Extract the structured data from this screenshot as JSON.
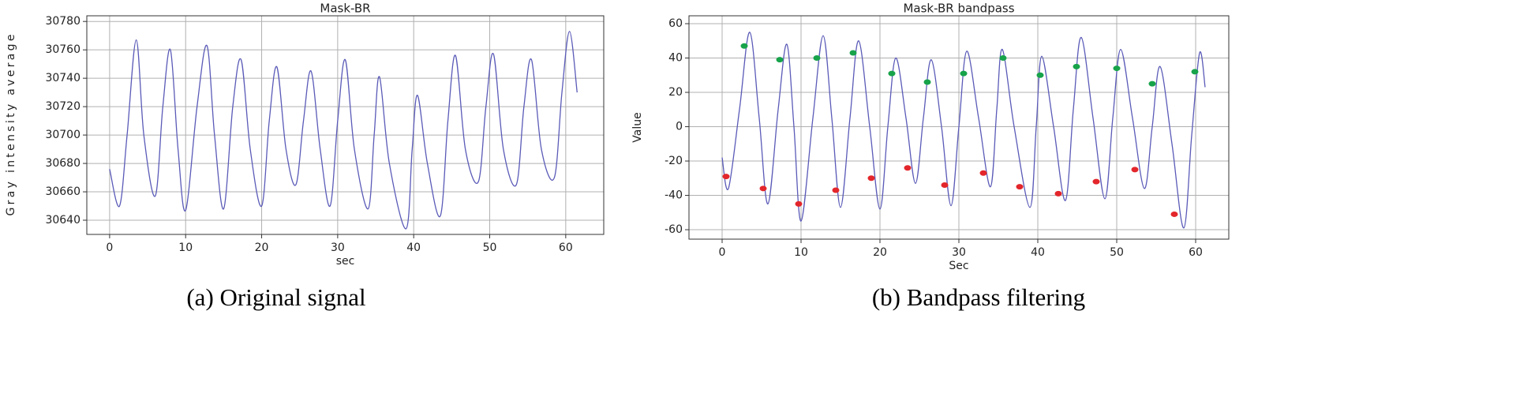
{
  "chart_data": [
    {
      "type": "line",
      "title": "Mask-BR",
      "xlabel": "sec",
      "ylabel": "Gray intensity average",
      "caption": "(a) Original signal",
      "xlim": [
        -3,
        65
      ],
      "ylim": [
        30630,
        30784
      ],
      "xticks": [
        0,
        10,
        20,
        30,
        40,
        50,
        60
      ],
      "yticks": [
        30640,
        30660,
        30680,
        30700,
        30720,
        30740,
        30760,
        30780
      ],
      "grid": true,
      "series": [
        {
          "type": "line",
          "color": "#5a5ab8",
          "x": [
            0,
            1.3,
            2.3,
            3.5,
            4.5,
            6,
            7,
            8,
            9,
            10,
            11.5,
            12.8,
            13.8,
            15,
            16.2,
            17.3,
            18.5,
            20,
            21,
            22,
            23.2,
            24.5,
            25.5,
            26.5,
            27.7,
            29,
            30,
            31,
            32.2,
            34,
            34.8,
            35.5,
            36.8,
            39,
            39.8,
            40.5,
            41.8,
            43.5,
            44.5,
            45.5,
            46.8,
            48.5,
            49.5,
            50.5,
            51.8,
            53.5,
            54.5,
            55.5,
            56.8,
            58.5,
            59.5,
            60.5,
            61.5
          ],
          "values": [
            30676,
            30650,
            30700,
            30767,
            30700,
            30657,
            30720,
            30760,
            30690,
            30647,
            30720,
            30763,
            30700,
            30648,
            30720,
            30753,
            30690,
            30650,
            30710,
            30748,
            30690,
            30665,
            30710,
            30745,
            30690,
            30650,
            30710,
            30753,
            30690,
            30648,
            30700,
            30741,
            30680,
            30634,
            30690,
            30728,
            30680,
            30643,
            30710,
            30756,
            30690,
            30667,
            30720,
            30757,
            30690,
            30665,
            30720,
            30753,
            30690,
            30670,
            30730,
            30773,
            30730
          ]
        }
      ]
    },
    {
      "type": "line",
      "title": "Mask-BR bandpass",
      "xlabel": "Sec",
      "ylabel": "Value",
      "caption": "(b) Bandpass filtering",
      "xlim": [
        -4.2,
        64.2
      ],
      "ylim": [
        -65.5,
        64.6
      ],
      "xticks": [
        0,
        10,
        20,
        30,
        40,
        50,
        60
      ],
      "yticks": [
        -60,
        -40,
        -20,
        0,
        20,
        40,
        60
      ],
      "grid": true,
      "series": [
        {
          "type": "line",
          "color": "#5a5ab8",
          "x": [
            0,
            0.8,
            2.2,
            3.5,
            4.7,
            5.8,
            7.1,
            8.2,
            9.1,
            10,
            11.5,
            12.8,
            13.9,
            15,
            16.2,
            17.3,
            18.7,
            20,
            21,
            22,
            23.3,
            24.5,
            25.5,
            26.5,
            27.8,
            29,
            30,
            31,
            32.5,
            34,
            34.8,
            35.5,
            37,
            39,
            39.8,
            40.5,
            42,
            43.5,
            44.5,
            45.5,
            47,
            48.5,
            49.5,
            50.5,
            52,
            53.5,
            54.5,
            55.5,
            57,
            58.5,
            59.5,
            60.5,
            61.2
          ],
          "values": [
            -18,
            -36,
            10,
            55,
            5,
            -45,
            10,
            48,
            0,
            -55,
            5,
            53,
            5,
            -47,
            5,
            50,
            0,
            -48,
            0,
            40,
            5,
            -33,
            5,
            39,
            0,
            -46,
            0,
            44,
            5,
            -35,
            10,
            45,
            0,
            -47,
            0,
            41,
            0,
            -43,
            10,
            52,
            5,
            -42,
            5,
            45,
            5,
            -36,
            0,
            35,
            -10,
            -59,
            -5,
            43,
            23
          ]
        },
        {
          "type": "scatter",
          "color": "#17a34a",
          "x": [
            2.8,
            7.3,
            12,
            16.6,
            21.5,
            26,
            30.6,
            35.6,
            40.3,
            44.9,
            50,
            54.5,
            59.9
          ],
          "values": [
            47,
            39,
            40,
            43,
            31,
            26,
            31,
            40,
            30,
            35,
            34,
            25,
            32
          ]
        },
        {
          "type": "scatter",
          "color": "#e3262b",
          "x": [
            0.5,
            5.2,
            9.7,
            14.4,
            18.9,
            23.5,
            28.2,
            33.1,
            37.7,
            42.6,
            47.4,
            52.3,
            57.3
          ],
          "values": [
            -29,
            -36,
            -45,
            -37,
            -30,
            -24,
            -34,
            -27,
            -35,
            -39,
            -32,
            -25,
            -51
          ]
        }
      ]
    }
  ]
}
